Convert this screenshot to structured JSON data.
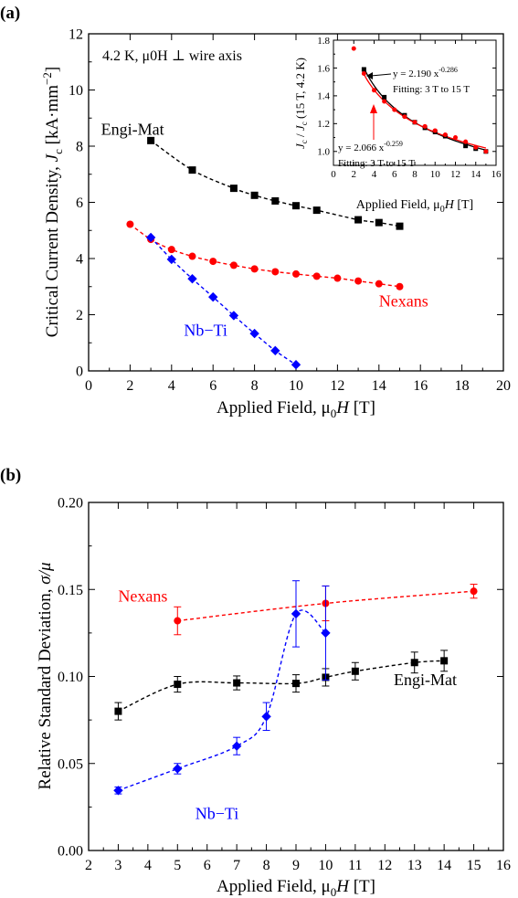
{
  "panels": [
    {
      "label": "(a)",
      "annotation": "4.2 K, μ0H ⊥ wire axis",
      "chart_data": {
        "type": "scatter",
        "xlabel": "Applied Field, μ0H [T]",
        "ylabel": "Critical Current Density, Jc [kA·mm−2]",
        "xlim": [
          0,
          20
        ],
        "ylim": [
          0,
          12
        ],
        "xticks": [
          0,
          2,
          4,
          6,
          8,
          10,
          12,
          14,
          16,
          18,
          20
        ],
        "yticks": [
          0,
          2,
          4,
          6,
          8,
          10,
          12
        ],
        "grid": false,
        "series": [
          {
            "name": "Engi-Mat",
            "color": "#000000",
            "marker": "square",
            "label_pos": [
              0.6,
              8.4
            ],
            "x": [
              3,
              5,
              7,
              8,
              9,
              10,
              11,
              13,
              14,
              15
            ],
            "y": [
              8.2,
              7.15,
              6.5,
              6.25,
              6.05,
              5.88,
              5.72,
              5.38,
              5.28,
              5.15
            ]
          },
          {
            "name": "Nexans",
            "color": "#ff0000",
            "marker": "circle",
            "label_pos": [
              14.0,
              2.3
            ],
            "x": [
              2,
              3,
              4,
              5,
              6,
              7,
              8,
              9,
              10,
              11,
              12,
              13,
              14,
              15
            ],
            "y": [
              5.22,
              4.68,
              4.32,
              4.08,
              3.9,
              3.76,
              3.63,
              3.53,
              3.45,
              3.37,
              3.3,
              3.2,
              3.1,
              3.0
            ]
          },
          {
            "name": "Nb−Ti",
            "color": "#0000ff",
            "marker": "diamond",
            "label_pos": [
              4.6,
              1.25
            ],
            "x": [
              3,
              4,
              5,
              6,
              7,
              8,
              9,
              10
            ],
            "y": [
              4.75,
              3.97,
              3.28,
              2.63,
              1.97,
              1.33,
              0.72,
              0.22
            ]
          }
        ],
        "inset": {
          "type": "scatter",
          "xlabel": "Applied Field, μ0H [T]",
          "ylabel": "Jc / Jc (15 T, 4.2 K)",
          "xlim": [
            0,
            16
          ],
          "ylim": [
            0.9,
            1.8
          ],
          "xticks": [
            0,
            2,
            4,
            6,
            8,
            10,
            12,
            14,
            16
          ],
          "yticks": [
            1.0,
            1.2,
            1.4,
            1.6,
            1.8
          ],
          "fit_black": {
            "a": 2.19,
            "b": -0.286,
            "text": "y = 2.190 x",
            "exp": "-0.286",
            "range": "Fitting: 3 T to 15 T"
          },
          "fit_red": {
            "a": 2.066,
            "b": -0.259,
            "text": "y = 2.066 x",
            "exp": "-0.259",
            "range": "Fitting: 3 T to 15 T"
          },
          "series": [
            {
              "color": "#000000",
              "marker": "square",
              "x": [
                3,
                5,
                7,
                8,
                9,
                10,
                11,
                13,
                14,
                15
              ],
              "y": [
                1.59,
                1.39,
                1.26,
                1.21,
                1.17,
                1.14,
                1.11,
                1.04,
                1.02,
                1.0
              ]
            },
            {
              "color": "#ff0000",
              "marker": "circle",
              "x": [
                2,
                3,
                4,
                5,
                6,
                7,
                8,
                9,
                10,
                11,
                12,
                13,
                14,
                15
              ],
              "y": [
                1.74,
                1.56,
                1.44,
                1.36,
                1.3,
                1.25,
                1.21,
                1.18,
                1.15,
                1.12,
                1.1,
                1.07,
                1.03,
                1.0
              ]
            }
          ]
        }
      }
    },
    {
      "label": "(b)",
      "chart_data": {
        "type": "scatter",
        "xlabel": "Applied Field, μ0H [T]",
        "ylabel": "Relative Standard Deviation, σ/μ",
        "xlim": [
          2,
          16
        ],
        "ylim": [
          0,
          0.2
        ],
        "xticks": [
          2,
          3,
          4,
          5,
          6,
          7,
          8,
          9,
          10,
          11,
          12,
          13,
          14,
          15,
          16
        ],
        "yticks": [
          0.0,
          0.05,
          0.1,
          0.15,
          0.2
        ],
        "ytick_labels": [
          "0.00",
          "0.05",
          "0.10",
          "0.15",
          "0.20"
        ],
        "grid": false,
        "series": [
          {
            "name": "Nexans",
            "color": "#ff0000",
            "marker": "circle",
            "label_pos": [
              3.0,
              0.143
            ],
            "x": [
              5,
              10,
              15
            ],
            "y": [
              0.132,
              0.142,
              0.149
            ],
            "err": [
              0.008,
              0.01,
              0.004
            ]
          },
          {
            "name": "Engi-Mat",
            "color": "#000000",
            "marker": "square",
            "label_pos": [
              12.3,
              0.095
            ],
            "x": [
              3,
              5,
              7,
              9,
              10,
              11,
              13,
              14
            ],
            "y": [
              0.08,
              0.0955,
              0.0963,
              0.096,
              0.0995,
              0.103,
              0.108,
              0.109
            ],
            "err": [
              0.005,
              0.0045,
              0.004,
              0.005,
              0.005,
              0.005,
              0.006,
              0.006
            ]
          },
          {
            "name": "Nb−Ti",
            "color": "#0000ff",
            "marker": "diamond",
            "label_pos": [
              5.6,
              0.018
            ],
            "x": [
              3,
              5,
              7,
              8,
              9,
              10
            ],
            "y": [
              0.0345,
              0.047,
              0.06,
              0.077,
              0.136,
              0.125
            ],
            "err": [
              0.002,
              0.003,
              0.005,
              0.008,
              0.019,
              0.027
            ]
          }
        ]
      }
    }
  ]
}
